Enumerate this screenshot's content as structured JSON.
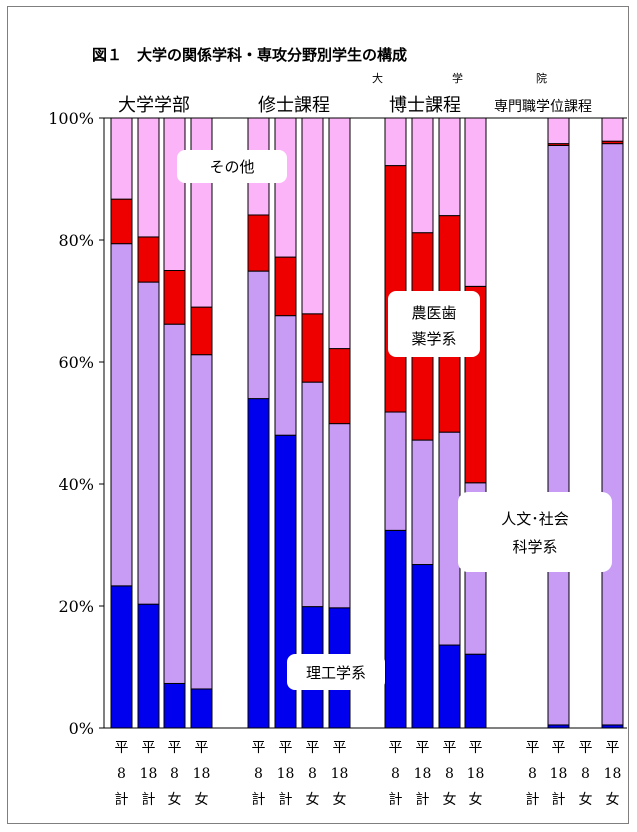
{
  "chart_data": {
    "type": "bar",
    "stacked": true,
    "percent": true,
    "title": "図１　大学の関係学科・専攻分野別学生の構成",
    "ylim": [
      0,
      100
    ],
    "yticks": [
      "0%",
      "20%",
      "40%",
      "60%",
      "80%",
      "100%"
    ],
    "group_labels": {
      "undergrad": "大学学部",
      "master": "修士課程",
      "doctor": "博士課程",
      "professional": "専門職学位課程",
      "graduate_school_chars": [
        "大",
        "学",
        "院"
      ]
    },
    "categories": [
      {
        "group": "undergrad",
        "line1": "平",
        "line2": "8",
        "line3": "計"
      },
      {
        "group": "undergrad",
        "line1": "平",
        "line2": "18",
        "line3": "計"
      },
      {
        "group": "undergrad",
        "line1": "平",
        "line2": "8",
        "line3": "女"
      },
      {
        "group": "undergrad",
        "line1": "平",
        "line2": "18",
        "line3": "女"
      },
      {
        "group": "master",
        "line1": "平",
        "line2": "8",
        "line3": "計"
      },
      {
        "group": "master",
        "line1": "平",
        "line2": "18",
        "line3": "計"
      },
      {
        "group": "master",
        "line1": "平",
        "line2": "8",
        "line3": "女"
      },
      {
        "group": "master",
        "line1": "平",
        "line2": "18",
        "line3": "女"
      },
      {
        "group": "doctor",
        "line1": "平",
        "line2": "8",
        "line3": "計"
      },
      {
        "group": "doctor",
        "line1": "平",
        "line2": "18",
        "line3": "計"
      },
      {
        "group": "doctor",
        "line1": "平",
        "line2": "8",
        "line3": "女"
      },
      {
        "group": "doctor",
        "line1": "平",
        "line2": "18",
        "line3": "女"
      },
      {
        "group": "professional",
        "line1": "平",
        "line2": "8",
        "line3": "計"
      },
      {
        "group": "professional",
        "line1": "平",
        "line2": "18",
        "line3": "計"
      },
      {
        "group": "professional",
        "line1": "平",
        "line2": "8",
        "line3": "女"
      },
      {
        "group": "professional",
        "line1": "平",
        "line2": "18",
        "line3": "女"
      }
    ],
    "series": [
      {
        "name": "理工学系",
        "color": "#0000ee",
        "values": [
          23.3,
          20.3,
          7.3,
          6.4,
          54.0,
          48.0,
          19.9,
          19.7,
          32.4,
          26.8,
          13.6,
          12.1,
          null,
          0.5,
          null,
          0.5
        ]
      },
      {
        "name": "人文･社会\n科学系",
        "color": "#c89bf5",
        "values": [
          56.1,
          52.8,
          58.9,
          54.8,
          20.9,
          19.6,
          36.8,
          30.2,
          19.4,
          20.4,
          34.9,
          28.1,
          null,
          95.0,
          null,
          95.3
        ]
      },
      {
        "name": "農医歯\n薬学系",
        "color": "#ee0000",
        "values": [
          7.3,
          7.4,
          8.8,
          7.8,
          9.2,
          9.6,
          11.2,
          12.3,
          40.4,
          34.0,
          35.5,
          32.2,
          null,
          0.3,
          null,
          0.4
        ]
      },
      {
        "name": "その他",
        "color": "#fbb4f8",
        "values": [
          13.3,
          19.5,
          25.0,
          31.0,
          15.9,
          22.8,
          32.1,
          37.8,
          7.8,
          18.8,
          16.0,
          27.6,
          null,
          4.2,
          null,
          3.8
        ]
      }
    ]
  },
  "annotations": {
    "other": "その他",
    "agri_med": [
      "農医歯",
      "薬学系"
    ],
    "humanities": [
      "人文･社会",
      "科学系"
    ],
    "science": "理工学系"
  }
}
